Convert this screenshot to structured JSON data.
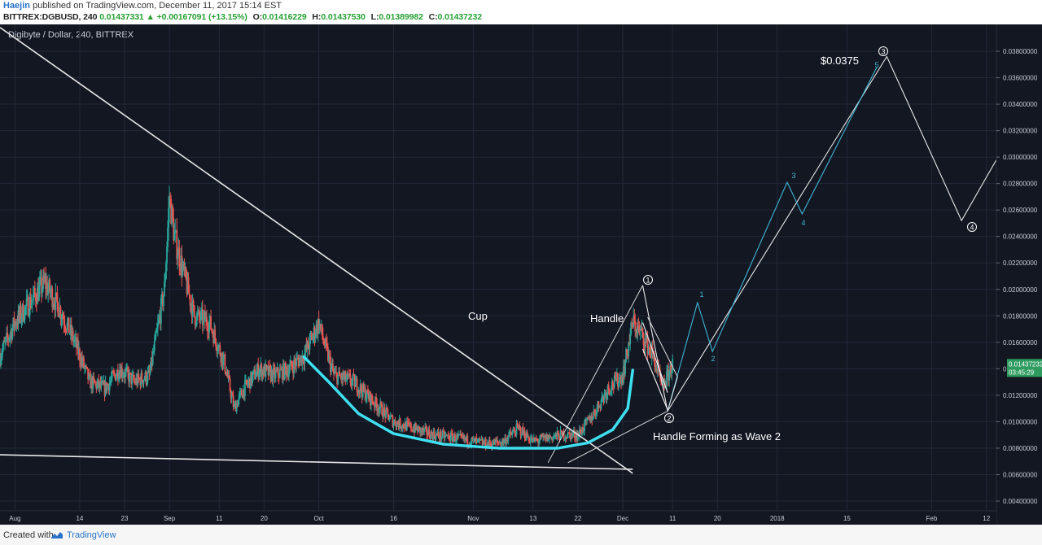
{
  "header": {
    "author": "Haejin",
    "published_text": "published on TradingView.com, December 11, 2017 15:14 EST",
    "symbol_line": "BITTREX:DGBUSD, 240",
    "last_price": "0.01437331",
    "change_arrow": "▲",
    "change": "+0.00167091 (+13.15%)",
    "open_label": "O:",
    "open": "0.01416229",
    "high_label": "H:",
    "high": "0.01437530",
    "low_label": "L:",
    "low": "0.01389982",
    "close_label": "C:",
    "close": "0.01437232"
  },
  "footer": {
    "created_with": "Created with",
    "brand": "TradingView"
  },
  "colors": {
    "background": "#131722",
    "up": "#26a69a",
    "down": "#ef5350",
    "cyan": "#3ee0f0",
    "wave": "#3fb6d9",
    "white": "#e8e8e8",
    "price_badge": "#2e9c5f"
  },
  "chart_data": {
    "type": "candlestick",
    "title": "Digibyte / Dollar, 240, BITTREX",
    "ylabel": "",
    "xlabel": "",
    "y_scale": "linear",
    "ylim": [
      0.0037,
      0.0397
    ],
    "y_ticks": [
      "0.00400000",
      "0.00600000",
      "0.00800000",
      "0.01000000",
      "0.01200000",
      "0.01400000",
      "0.01600000",
      "0.01800000",
      "0.02000000",
      "0.02200000",
      "0.02400000",
      "0.02600000",
      "0.02800000",
      "0.03000000",
      "0.03200000",
      "0.03400000",
      "0.03600000",
      "0.03800000"
    ],
    "x_ticks": [
      "Aug",
      "14",
      "23",
      "Sep",
      "11",
      "20",
      "Oct",
      "16",
      "Nov",
      "13",
      "22",
      "Dec",
      "11",
      "20",
      "2018",
      "15",
      "Feb",
      "12"
    ],
    "x_range": [
      "2017-07-29",
      "2018-02-14"
    ],
    "current_price_label": "0.01437232",
    "countdown_label": "03:45:29",
    "candles_4h": [
      [
        "2017-07-29",
        0.015
      ],
      [
        "2017-08-01",
        0.0175
      ],
      [
        "2017-08-04",
        0.019
      ],
      [
        "2017-08-07",
        0.0205
      ],
      [
        "2017-08-10",
        0.0185
      ],
      [
        "2017-08-13",
        0.016
      ],
      [
        "2017-08-16",
        0.013
      ],
      [
        "2017-08-19",
        0.0125
      ],
      [
        "2017-08-22",
        0.014
      ],
      [
        "2017-08-25",
        0.013
      ],
      [
        "2017-08-28",
        0.0135
      ],
      [
        "2017-08-31",
        0.02
      ],
      [
        "2017-09-01",
        0.027
      ],
      [
        "2017-09-02",
        0.024
      ],
      [
        "2017-09-04",
        0.021
      ],
      [
        "2017-09-06",
        0.018
      ],
      [
        "2017-09-09",
        0.0175
      ],
      [
        "2017-09-12",
        0.0145
      ],
      [
        "2017-09-14",
        0.011
      ],
      [
        "2017-09-16",
        0.0125
      ],
      [
        "2017-09-19",
        0.014
      ],
      [
        "2017-09-22",
        0.0135
      ],
      [
        "2017-09-25",
        0.014
      ],
      [
        "2017-09-28",
        0.015
      ],
      [
        "2017-10-01",
        0.0175
      ],
      [
        "2017-10-02",
        0.016
      ],
      [
        "2017-10-04",
        0.0135
      ],
      [
        "2017-10-08",
        0.013
      ],
      [
        "2017-10-12",
        0.0115
      ],
      [
        "2017-10-16",
        0.01
      ],
      [
        "2017-10-20",
        0.0095
      ],
      [
        "2017-10-24",
        0.009
      ],
      [
        "2017-10-28",
        0.0088
      ],
      [
        "2017-11-01",
        0.0085
      ],
      [
        "2017-11-04",
        0.0083
      ],
      [
        "2017-11-07",
        0.0085
      ],
      [
        "2017-11-10",
        0.0095
      ],
      [
        "2017-11-13",
        0.0085
      ],
      [
        "2017-11-16",
        0.0088
      ],
      [
        "2017-11-19",
        0.009
      ],
      [
        "2017-11-22",
        0.009
      ],
      [
        "2017-11-25",
        0.0105
      ],
      [
        "2017-11-28",
        0.0125
      ],
      [
        "2017-12-01",
        0.0135
      ],
      [
        "2017-12-03",
        0.0175
      ],
      [
        "2017-12-05",
        0.0165
      ],
      [
        "2017-12-07",
        0.015
      ],
      [
        "2017-12-09",
        0.0125
      ],
      [
        "2017-12-11",
        0.0144
      ]
    ],
    "annotations": {
      "cup": "Cup",
      "handle": "Handle",
      "handle_wave": "Handle Forming as Wave 2",
      "target": "$0.0375",
      "waves_major": [
        "1",
        "2",
        "3",
        "4"
      ],
      "waves_minor": [
        "1",
        "2",
        "3",
        "4",
        "5"
      ]
    },
    "trendlines": {
      "downtrend": [
        [
          "2017-07-29",
          0.0398
        ],
        [
          "2017-12-03",
          0.0061
        ]
      ],
      "lower_support": [
        [
          "2017-07-29",
          0.0075
        ],
        [
          "2017-12-03",
          0.0064
        ]
      ],
      "wave_path": [
        [
          "2017-12-05",
          0.0203
        ],
        [
          "2017-12-10",
          0.0108
        ],
        [
          "2018-01-23",
          0.0376
        ],
        [
          "2018-02-07",
          0.0252
        ],
        [
          "2018-02-14",
          0.0298
        ]
      ],
      "minor_path": [
        [
          "2017-12-10",
          0.0108
        ],
        [
          "2017-12-16",
          0.019
        ],
        [
          "2017-12-19",
          0.0153
        ],
        [
          "2018-01-03",
          0.0281
        ],
        [
          "2018-01-06",
          0.0257
        ],
        [
          "2018-01-21",
          0.0368
        ]
      ]
    }
  }
}
